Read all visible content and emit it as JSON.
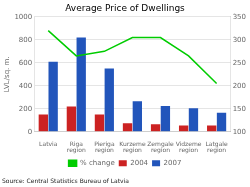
{
  "chart_data": {
    "type": "bar",
    "title": "Average Price of Dwellings",
    "ylabel": "LVL/sq. m.",
    "annotations": [
      "Source: Central Statistics Bureau of Latvia"
    ],
    "categories": [
      "Latvia",
      "Riga\nregion",
      "Pieriga\nregion",
      "Kurzeme\nregion",
      "Zemgale\nregion",
      "Vidzeme\nregion",
      "Latgale\nregion"
    ],
    "series": [
      {
        "name": "2004",
        "color": "#cc2222",
        "values": [
          150,
          220,
          150,
          75,
          65,
          55,
          55
        ]
      },
      {
        "name": "2007",
        "color": "#2255bb",
        "values": [
          610,
          820,
          550,
          265,
          225,
          205,
          165
        ]
      },
      {
        "name": "% change",
        "color": "#00cc00",
        "type": "line",
        "axis": "y2",
        "values": [
          320,
          265,
          275,
          305,
          305,
          265,
          205
        ]
      }
    ],
    "ylim": [
      0,
      1000
    ],
    "yticks": [
      0,
      200,
      400,
      600,
      800,
      1000
    ],
    "y2lim": [
      100,
      350
    ],
    "y2ticks": [
      100,
      150,
      200,
      250,
      300,
      350
    ],
    "grid": true,
    "legend": "bottom"
  }
}
